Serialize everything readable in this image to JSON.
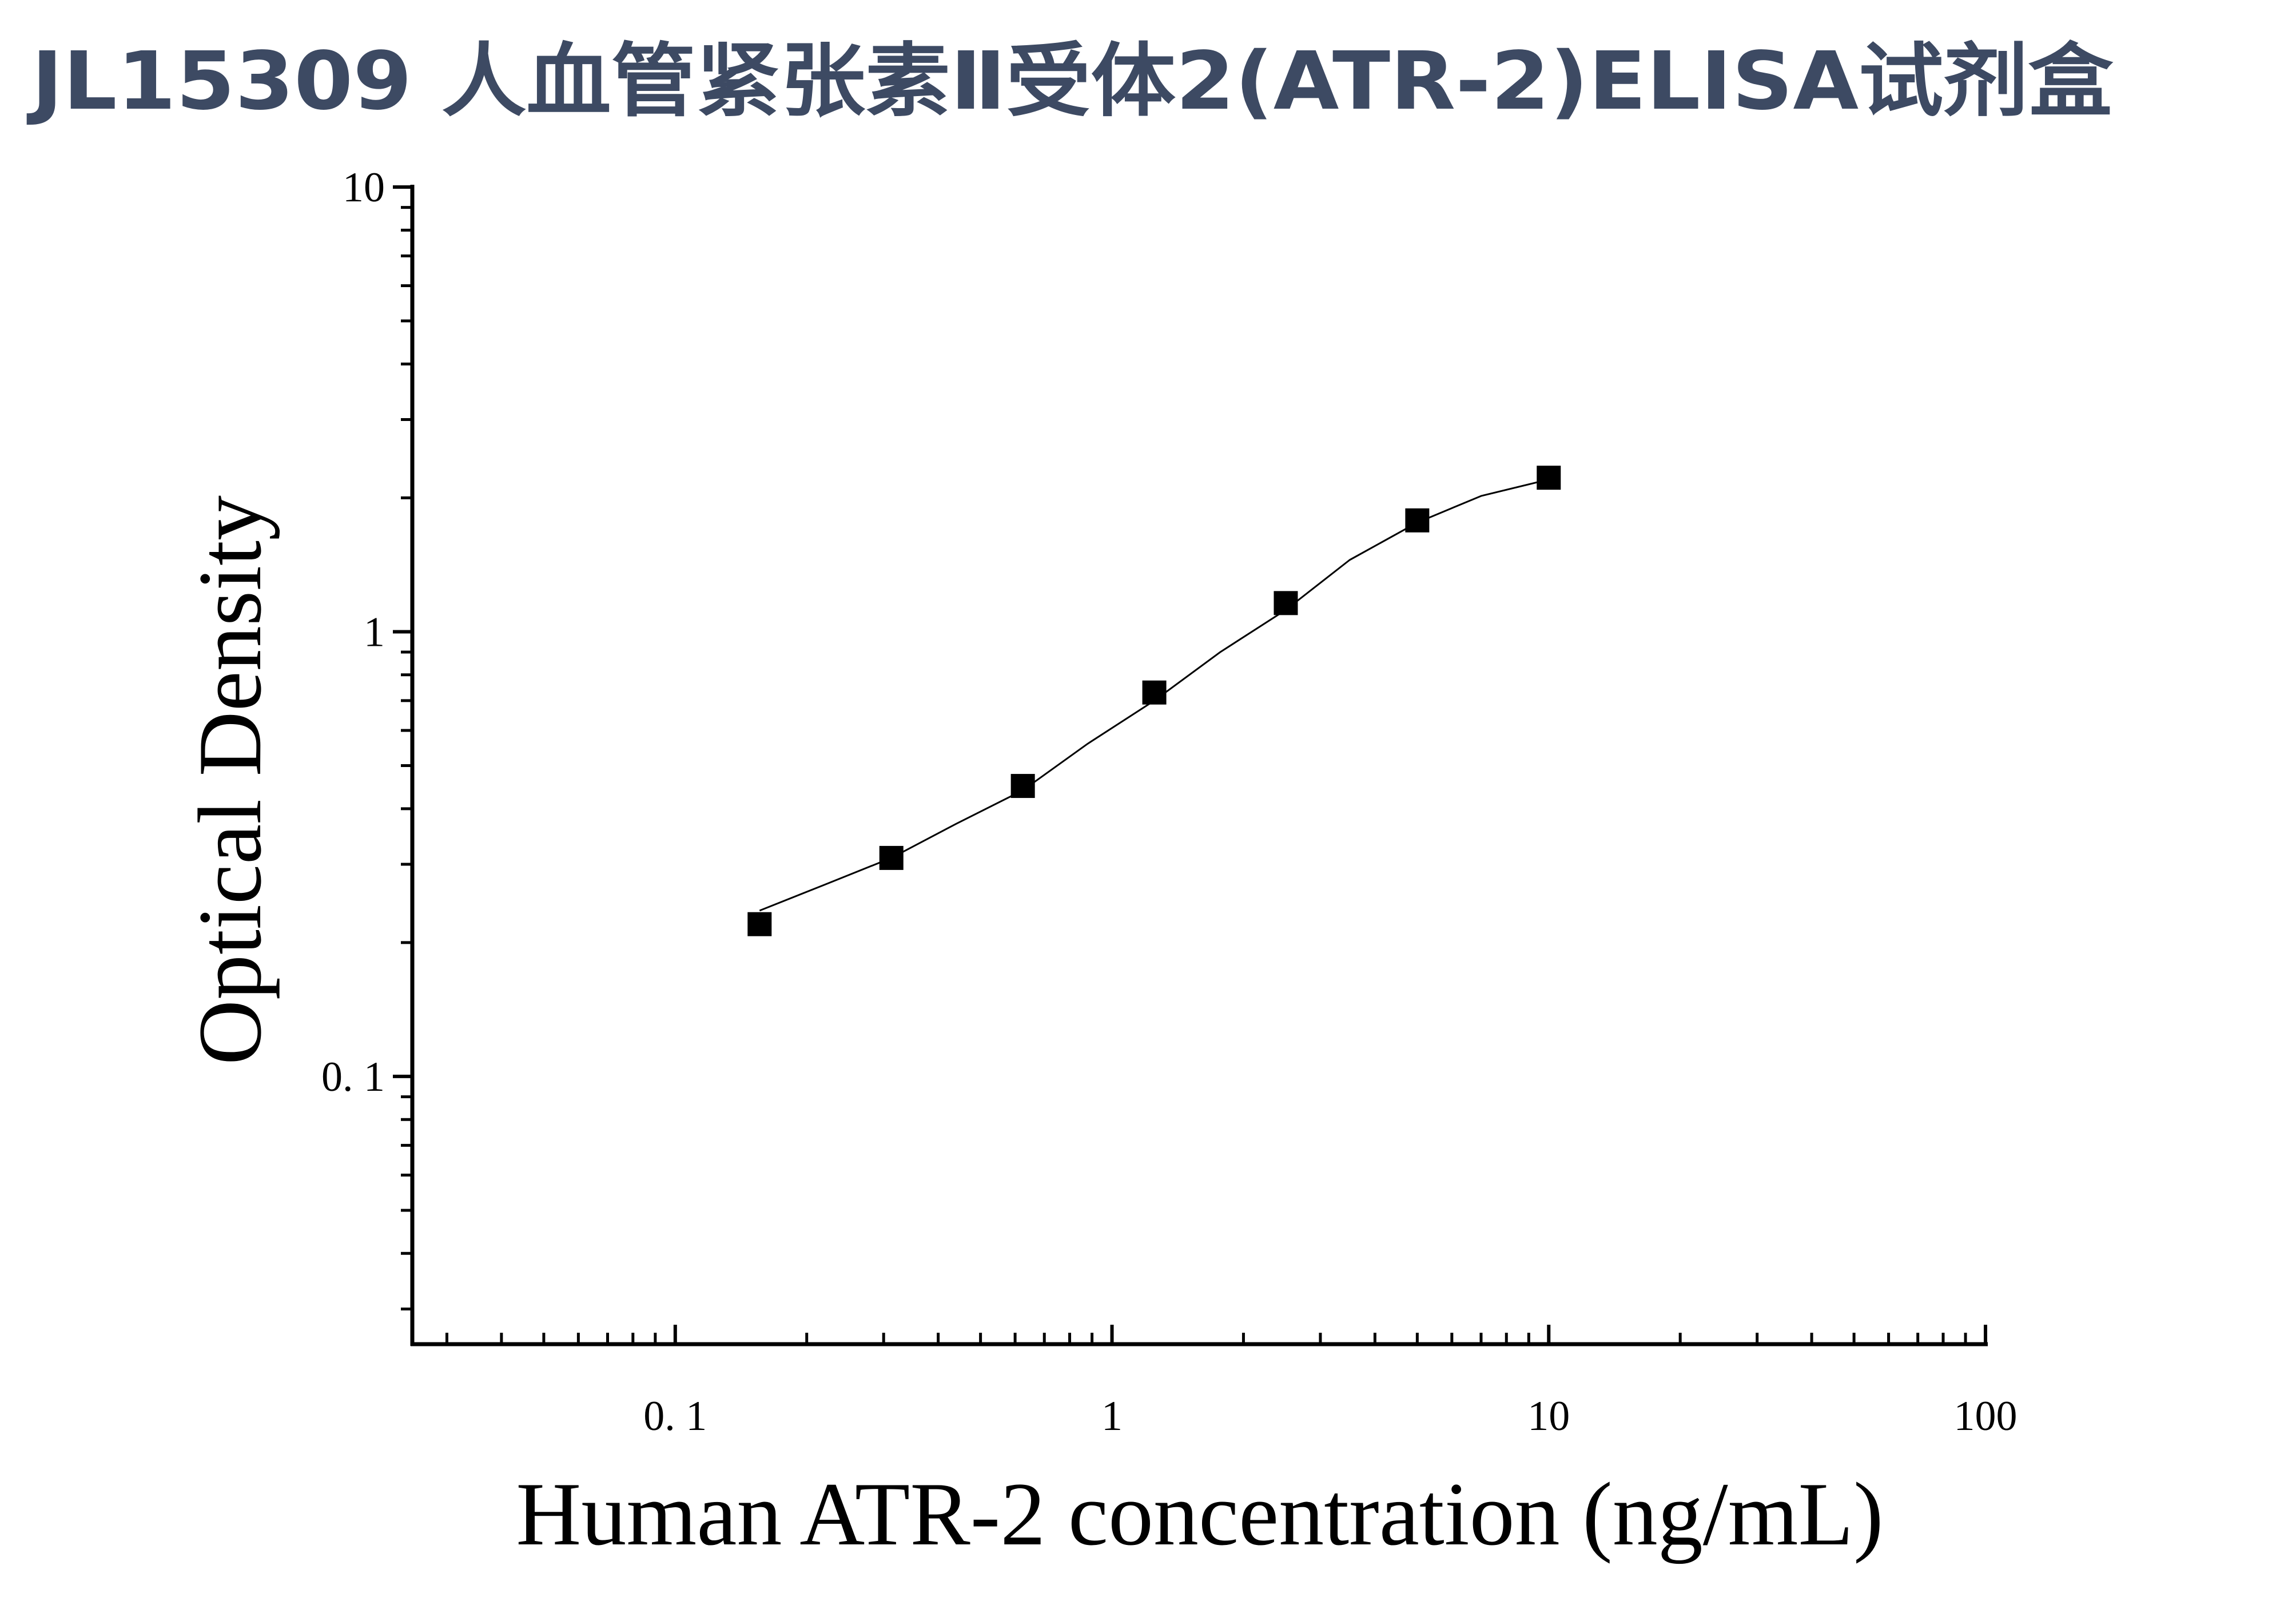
{
  "chart_data": {
    "type": "scatter",
    "title": "JL15309 人血管紧张素Ⅱ受体2(ATR-2)ELISA试剂盒",
    "x_label": "Human ATR-2 concentration (ng/mL)",
    "y_label": "Optical Density",
    "xscale": "log",
    "yscale": "log",
    "xlim": [
      0.025,
      100
    ],
    "ylim": [
      0.025,
      10
    ],
    "xticks": [
      {
        "value": 0.1,
        "label": "0. 1"
      },
      1,
      10,
      100
    ],
    "yticks": [
      {
        "value": 0.1,
        "label": "0. 1"
      },
      1,
      10
    ],
    "xminorticks": [
      0.03,
      0.04,
      0.05,
      0.06,
      0.07,
      0.08,
      0.09,
      0.2,
      0.3,
      0.4,
      0.5,
      0.6,
      0.7,
      0.8,
      0.9,
      2,
      3,
      4,
      5,
      6,
      7,
      8,
      9,
      20,
      30,
      40,
      50,
      60,
      70,
      80,
      90
    ],
    "yminorticks": [
      0.03,
      0.04,
      0.05,
      0.06,
      0.07,
      0.08,
      0.09,
      0.2,
      0.3,
      0.4,
      0.5,
      0.6,
      0.7,
      0.8,
      0.9,
      2,
      3,
      4,
      5,
      6,
      7,
      8,
      9
    ],
    "series": [
      {
        "type": "scatter",
        "color": "#000000",
        "x": [
          0.156,
          0.3125,
          0.625,
          1.25,
          2.5,
          5,
          10
        ],
        "values": [
          0.22,
          0.31,
          0.45,
          0.73,
          1.16,
          1.78,
          2.22
        ]
      },
      {
        "type": "line",
        "color": "#000000",
        "x": [
          0.156,
          0.22,
          0.3125,
          0.44,
          0.625,
          0.88,
          1.25,
          1.77,
          2.5,
          3.5,
          5,
          7,
          10
        ],
        "values": [
          0.236,
          0.27,
          0.31,
          0.37,
          0.44,
          0.56,
          0.7,
          0.9,
          1.12,
          1.45,
          1.76,
          2.02,
          2.2
        ]
      }
    ]
  }
}
